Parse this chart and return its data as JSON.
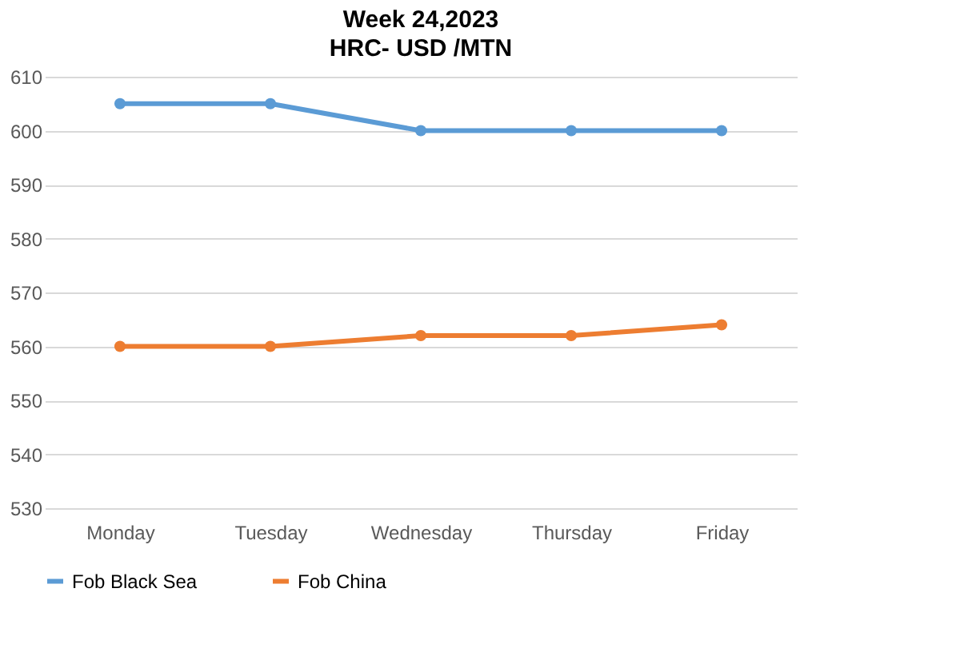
{
  "chart_data": {
    "type": "line",
    "title": "Week 24,2023",
    "subtitle": "HRC- USD /MTN",
    "categories": [
      "Monday",
      "Tuesday",
      "Wednesday",
      "Thursday",
      "Friday"
    ],
    "series": [
      {
        "name": "Fob Black Sea",
        "color": "#5b9bd5",
        "values": [
          605,
          605,
          600,
          600,
          600
        ]
      },
      {
        "name": "Fob China",
        "color": "#ed7d31",
        "values": [
          560,
          560,
          562,
          562,
          564
        ]
      }
    ],
    "ylim": [
      530,
      610
    ],
    "yticks": [
      530,
      540,
      550,
      560,
      570,
      580,
      590,
      600,
      610
    ],
    "grid": "y",
    "legend": "bottom",
    "marker": "circle",
    "line_style": "solid"
  }
}
